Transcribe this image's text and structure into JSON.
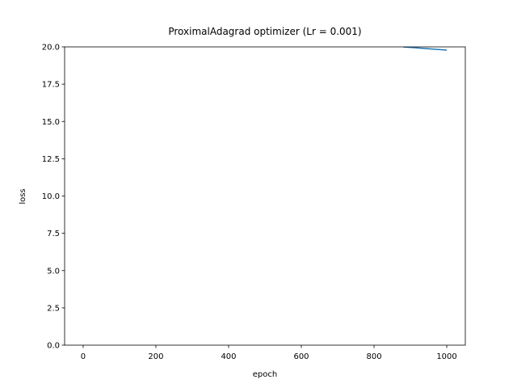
{
  "chart_data": {
    "type": "line",
    "title": "ProximalAdagrad optimizer (Lr = 0.001)",
    "x_label": "epoch",
    "y_label": "loss",
    "x": [
      880,
      940,
      1000
    ],
    "series": [
      {
        "name": "loss",
        "color": "#1f77b4",
        "values": [
          20.0,
          19.89,
          19.78
        ]
      }
    ],
    "xlim": [
      -51,
      1051
    ],
    "ylim": [
      0,
      20
    ],
    "xticks": [
      0,
      200,
      400,
      600,
      800,
      1000
    ],
    "yticks": [
      {
        "value": 0,
        "label": "0.0"
      },
      2.5,
      {
        "value": 5,
        "label": "5.0"
      },
      7.5,
      {
        "value": 10,
        "label": "10.0"
      },
      12.5,
      {
        "value": 15,
        "label": "15.0"
      },
      17.5,
      {
        "value": 20,
        "label": "20.0"
      }
    ]
  }
}
